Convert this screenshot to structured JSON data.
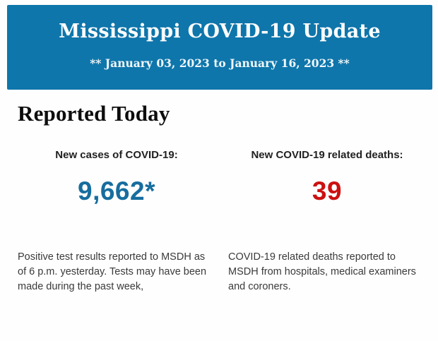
{
  "banner": {
    "title": "Mississippi COVID-19 Update",
    "subtitle": "** January 03, 2023 to January 16, 2023 **",
    "background_color": "#0e76ab",
    "text_color": "#ffffff"
  },
  "section": {
    "heading": "Reported Today"
  },
  "stats": [
    {
      "label": "New cases of COVID-19:",
      "value": "9,662*",
      "value_color": "#176d9e",
      "description": "Positive test results reported to MSDH as of 6 p.m. yesterday. Tests may have been made during the past week,"
    },
    {
      "label": "New COVID-19 related deaths:",
      "value": "39",
      "value_color": "#cc1111",
      "description": "COVID-19 related deaths reported to MSDH from hospitals, medical examiners and coroners."
    }
  ]
}
